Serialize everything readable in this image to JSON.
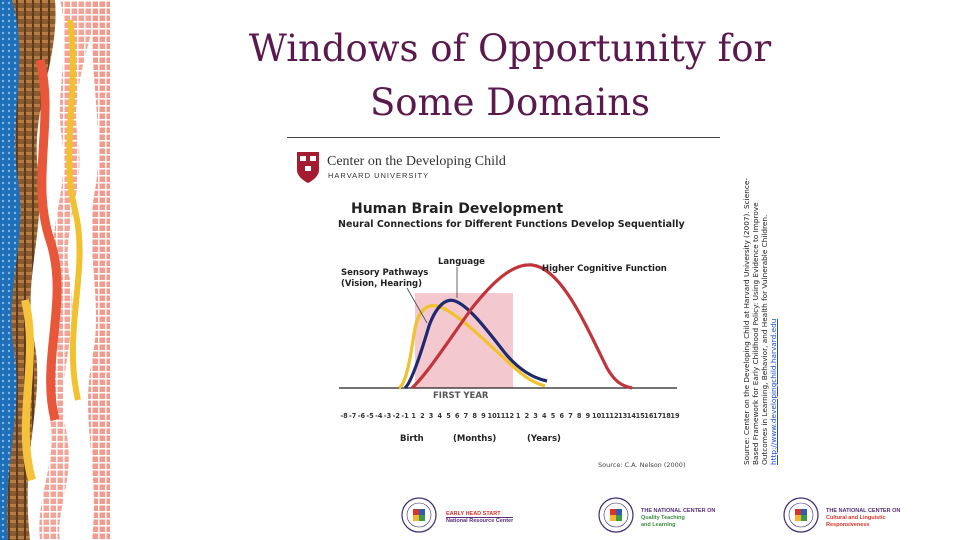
{
  "slide": {
    "title_line1": "Windows of Opportunity for",
    "title_line2": "Some Domains"
  },
  "figure": {
    "org_name": "Center on the Developing Child",
    "org_sub": "HARVARD UNIVERSITY",
    "heading": "Human Brain Development",
    "subheading": "Neural Connections for Different Functions Develop Sequentially",
    "label_sensory_1": "Sensory Pathways",
    "label_sensory_2": "(Vision, Hearing)",
    "label_language": "Language",
    "label_higher": "Higher Cognitive Function",
    "first_year_label": "FIRST YEAR",
    "axis_birth": "Birth",
    "axis_months": "(Months)",
    "axis_years": "(Years)",
    "source": "Source: C.A. Nelson (2000)"
  },
  "chart_data": {
    "type": "line",
    "tick_labels": [
      "-8",
      "-7",
      "-6",
      "-5",
      "-4",
      "-3",
      "-2",
      "-1",
      "1",
      "2",
      "3",
      "4",
      "5",
      "6",
      "7",
      "8",
      "9",
      "10",
      "11",
      "12",
      "1",
      "2",
      "3",
      "4",
      "5",
      "6",
      "7",
      "8",
      "9",
      "10",
      "11",
      "12",
      "13",
      "14",
      "15",
      "16",
      "17",
      "18",
      "19"
    ],
    "x_axis_groups": [
      "Birth",
      "(Months)",
      "(Years)"
    ],
    "highlight_region": "FIRST YEAR",
    "series": [
      {
        "name": "Sensory Pathways (Vision, Hearing)",
        "color": "#f2c12e"
      },
      {
        "name": "Language",
        "color": "#1f2a6e"
      },
      {
        "name": "Higher Cognitive Function",
        "color": "#c0343b"
      }
    ],
    "grid": false
  },
  "citation": {
    "text": "Source: Center on the Developing Child at Harvard University (2007). Science-Based Framework for Early Childhood Policy: Using Evidence to Improve Outcomes in Learning, Behavior, and Health for Vulnerable Children.",
    "link": "http://www.developingchild.harvard.edu"
  },
  "footer": {
    "logo1_line1": "EARLY HEAD START",
    "logo1_line2": "National Resource Center",
    "logo2_line1": "THE NATIONAL CENTER ON",
    "logo2_line2": "Quality Teaching",
    "logo2_line3": "and Learning",
    "logo3_line1": "THE NATIONAL CENTER ON",
    "logo3_line2": "Cultural and Linguistic",
    "logo3_line3": "Responsiveness"
  },
  "colors": {
    "title": "#5a1a4e",
    "sensory": "#f2c12e",
    "language": "#1f2a6e",
    "higher": "#c0343b",
    "first_year_band": "#f3c9cf"
  }
}
